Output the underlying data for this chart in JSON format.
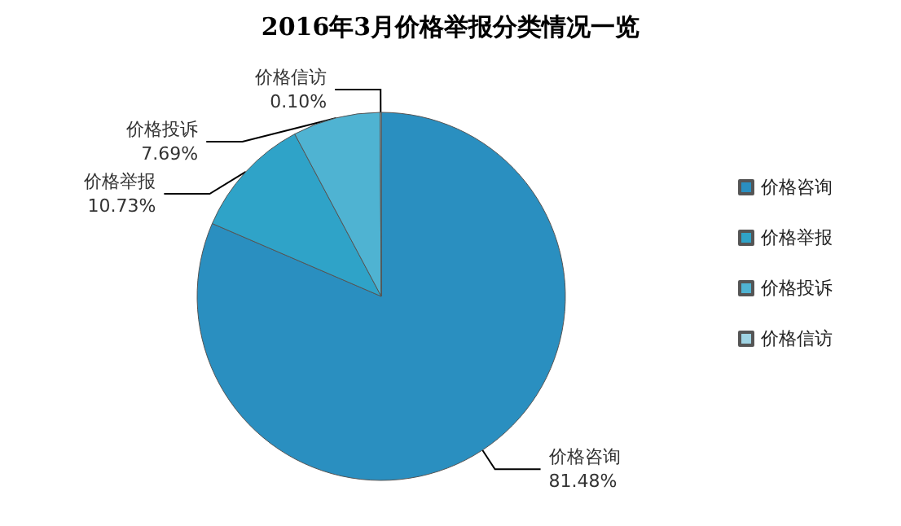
{
  "chart_data": {
    "type": "pie",
    "title": "2016年3月价格举报分类情况一览",
    "categories": [
      "价格咨询",
      "价格举报",
      "价格投诉",
      "价格信访"
    ],
    "values": [
      81.48,
      10.73,
      7.69,
      0.1
    ],
    "value_labels": [
      "81.48%",
      "10.73%",
      "7.69%",
      "0.10%"
    ],
    "colors": [
      "#2a8fc0",
      "#2fa3c8",
      "#4fb3d2",
      "#9fd3e3"
    ],
    "legend": "right"
  }
}
